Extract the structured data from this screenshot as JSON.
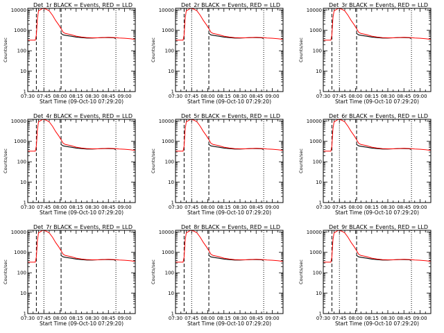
{
  "chart_data": [
    {
      "type": "line",
      "title": "Det_1r BLACK = Events, RED = LLD",
      "ylabel": "Counts/sec",
      "xlabel": "Start Time (09-Oct-10 07:29:20)"
    },
    {
      "type": "line",
      "title": "Det_2r BLACK = Events, RED = LLD",
      "ylabel": "Counts/sec",
      "xlabel": "Start Time (09-Oct-10 07:29:20)"
    },
    {
      "type": "line",
      "title": "Det_3r BLACK = Events, RED = LLD",
      "ylabel": "Counts/sec",
      "xlabel": "Start Time (09-Oct-10 07:29:20)"
    },
    {
      "type": "line",
      "title": "Det_4r BLACK = Events, RED = LLD",
      "ylabel": "Counts/sec",
      "xlabel": "Start Time (09-Oct-10 07:29:20)"
    },
    {
      "type": "line",
      "title": "Det_5r BLACK = Events, RED = LLD",
      "ylabel": "Counts/sec",
      "xlabel": "Start Time (09-Oct-10 07:29:20)"
    },
    {
      "type": "line",
      "title": "Det_6r BLACK = Events, RED = LLD",
      "ylabel": "Counts/sec",
      "xlabel": "Start Time (09-Oct-10 07:29:20)"
    },
    {
      "type": "line",
      "title": "Det_7r BLACK = Events, RED = LLD",
      "ylabel": "Counts/sec",
      "xlabel": "Start Time (09-Oct-10 07:29:20)"
    },
    {
      "type": "line",
      "title": "Det_8r BLACK = Events, RED = LLD",
      "ylabel": "Counts/sec",
      "xlabel": "Start Time (09-Oct-10 07:29:20)"
    },
    {
      "type": "line",
      "title": "Det_9r BLACK = Events, RED = LLD",
      "ylabel": "Counts/sec",
      "xlabel": "Start Time (09-Oct-10 07:29:20)"
    }
  ],
  "axes": {
    "x_range": [
      "07:30",
      "09:10"
    ],
    "x_ticks": [
      "07:30",
      "07:45",
      "08:00",
      "08:15",
      "08:30",
      "08:45",
      "09:00"
    ],
    "y_scale": "log",
    "y_range": [
      1,
      12000
    ],
    "y_ticks": [
      "1",
      "10",
      "100",
      "1000",
      "10000"
    ]
  },
  "markers": {
    "dashed": [
      "07:38",
      "08:01"
    ],
    "dotted": [
      "07:45",
      "08:52"
    ]
  },
  "series": {
    "lld": {
      "name": "LLD",
      "color": "#ff0000",
      "x": [
        "07:30",
        "07:37",
        "07:38",
        "07:39",
        "07:40",
        "07:44",
        "07:47",
        "07:50",
        "07:53",
        "07:56",
        "07:59",
        "08:01",
        "08:03",
        "08:05",
        "08:10",
        "08:15",
        "08:20",
        "08:25",
        "08:30",
        "08:35",
        "08:40",
        "08:45",
        "08:50",
        "08:55",
        "09:00",
        "09:05",
        "09:10"
      ],
      "y": [
        330,
        330,
        600,
        4000,
        9000,
        12000,
        11000,
        9000,
        5500,
        3000,
        1800,
        1200,
        800,
        700,
        620,
        520,
        470,
        440,
        430,
        430,
        445,
        455,
        445,
        425,
        410,
        390,
        360
      ]
    },
    "events": {
      "name": "Events",
      "color": "#000000",
      "x": [
        "08:01",
        "08:03",
        "08:06",
        "08:10",
        "08:15",
        "08:20",
        "08:25",
        "08:30",
        "08:35",
        "08:40",
        "08:45",
        "08:50",
        "08:52"
      ],
      "y": [
        700,
        600,
        560,
        520,
        470,
        440,
        420,
        420,
        430,
        440,
        440,
        430,
        400
      ]
    }
  },
  "colors": {
    "lld": "#ff0000",
    "events": "#000000",
    "marker": "#000000"
  }
}
